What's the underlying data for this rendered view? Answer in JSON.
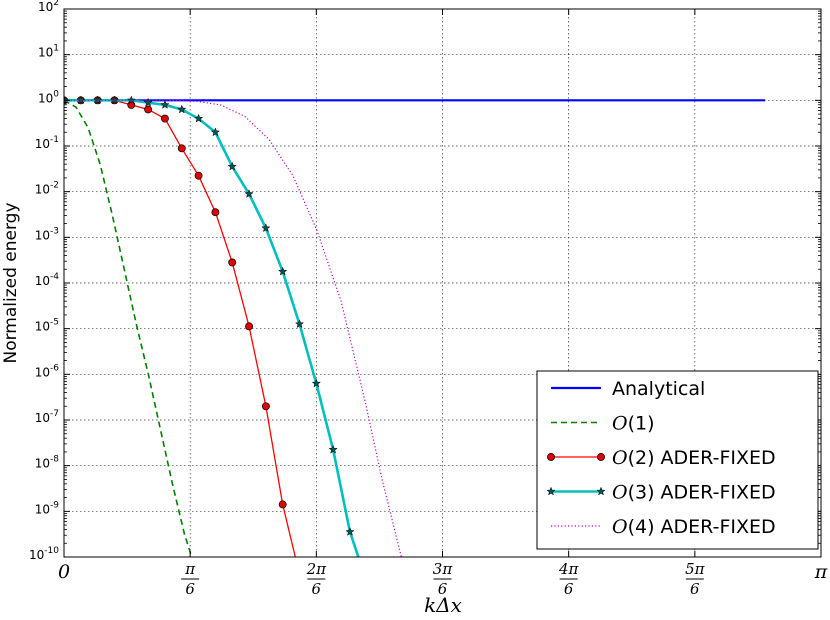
{
  "chart_data": {
    "type": "line",
    "ylabel": "Normalized energy",
    "xlabel": "kΔx",
    "xlim": [
      0,
      3.14159265
    ],
    "ylim_log10": [
      -10,
      2
    ],
    "y_scale": "log",
    "grid": true,
    "legend_position": "lower-right",
    "x_ticks": [
      {
        "value": 0,
        "label": "0"
      },
      {
        "value": 0.5235988,
        "num": "π",
        "den": "6"
      },
      {
        "value": 1.0471976,
        "num": "2π",
        "den": "6"
      },
      {
        "value": 1.5707963,
        "num": "3π",
        "den": "6"
      },
      {
        "value": 2.0943951,
        "num": "4π",
        "den": "6"
      },
      {
        "value": 2.6179939,
        "num": "5π",
        "den": "6"
      },
      {
        "value": 3.1415927,
        "label": "π"
      }
    ],
    "y_ticks": [
      {
        "exp": 2,
        "label": "10",
        "sup": "2"
      },
      {
        "exp": 1,
        "label": "10",
        "sup": "1"
      },
      {
        "exp": 0,
        "label": "10",
        "sup": "0"
      },
      {
        "exp": -1,
        "label": "10",
        "sup": "-1"
      },
      {
        "exp": -2,
        "label": "10",
        "sup": "-2"
      },
      {
        "exp": -3,
        "label": "10",
        "sup": "-3"
      },
      {
        "exp": -4,
        "label": "10",
        "sup": "-4"
      },
      {
        "exp": -5,
        "label": "10",
        "sup": "-5"
      },
      {
        "exp": -6,
        "label": "10",
        "sup": "-6"
      },
      {
        "exp": -7,
        "label": "10",
        "sup": "-7"
      },
      {
        "exp": -8,
        "label": "10",
        "sup": "-8"
      },
      {
        "exp": -9,
        "label": "10",
        "sup": "-9"
      },
      {
        "exp": -10,
        "label": "10",
        "sup": "-10"
      }
    ],
    "series": [
      {
        "name": "Analytical",
        "label_math": "",
        "label_text": "Analytical",
        "color": "#0000ff",
        "style": "solid",
        "marker": "none",
        "x": [
          0,
          2.91
        ],
        "log10_y": [
          0,
          0
        ]
      },
      {
        "name": "O(1)",
        "label_math": "O",
        "label_text": "(1)",
        "color": "#007f00",
        "style": "dashed",
        "marker": "none",
        "x": [
          0.0,
          0.05,
          0.1,
          0.15,
          0.2,
          0.25,
          0.3,
          0.35,
          0.4,
          0.45,
          0.5,
          0.53
        ],
        "log10_y": [
          0.0,
          -0.15,
          -0.6,
          -1.4,
          -2.5,
          -3.7,
          -4.9,
          -6.0,
          -7.2,
          -8.4,
          -9.5,
          -10.0
        ]
      },
      {
        "name": "O(2) ADER-FIXED",
        "label_math": "O",
        "label_text": "(2) ADER-FIXED",
        "color": "#ff0000",
        "marker_color": "#e00000",
        "style": "solid",
        "marker": "circle",
        "x": [
          0.0,
          0.0698,
          0.1396,
          0.2094,
          0.2793,
          0.3491,
          0.4189,
          0.4887,
          0.5585,
          0.6283,
          0.6981,
          0.768,
          0.8378,
          0.9076,
          0.9599
        ],
        "log10_y": [
          0.0,
          0.0,
          0.0,
          0.0,
          -0.1,
          -0.2,
          -0.4,
          -1.05,
          -1.65,
          -2.45,
          -3.55,
          -4.95,
          -6.7,
          -8.85,
          -10.0
        ],
        "markers_until": 14
      },
      {
        "name": "O(3) ADER-FIXED",
        "label_math": "O",
        "label_text": "(3) ADER-FIXED",
        "color": "#00bfbf",
        "marker_color": "#005555",
        "style": "solid",
        "marker": "star",
        "x": [
          0.0,
          0.0698,
          0.1396,
          0.2094,
          0.2793,
          0.3491,
          0.4189,
          0.4887,
          0.5585,
          0.6283,
          0.6981,
          0.768,
          0.8378,
          0.9076,
          0.9774,
          1.0472,
          1.117,
          1.1868,
          1.2217
        ],
        "log10_y": [
          0.0,
          0.0,
          0.0,
          0.0,
          0.0,
          -0.05,
          -0.1,
          -0.2,
          -0.4,
          -0.7,
          -1.45,
          -2.05,
          -2.8,
          -3.75,
          -4.9,
          -6.2,
          -7.65,
          -9.45,
          -10.0
        ],
        "markers_until": 18
      },
      {
        "name": "O(4) ADER-FIXED",
        "label_math": "O",
        "label_text": "(4) ADER-FIXED",
        "color": "#bf00bf",
        "style": "dotted",
        "marker": "none",
        "x": [
          0.0,
          0.3,
          0.45,
          0.55,
          0.65,
          0.75,
          0.85,
          0.95,
          1.05,
          1.15,
          1.25,
          1.32,
          1.4
        ],
        "log10_y": [
          0.0,
          0.0,
          0.0,
          -0.02,
          -0.1,
          -0.35,
          -0.85,
          -1.65,
          -2.85,
          -4.4,
          -6.6,
          -8.3,
          -10.0
        ]
      }
    ]
  }
}
